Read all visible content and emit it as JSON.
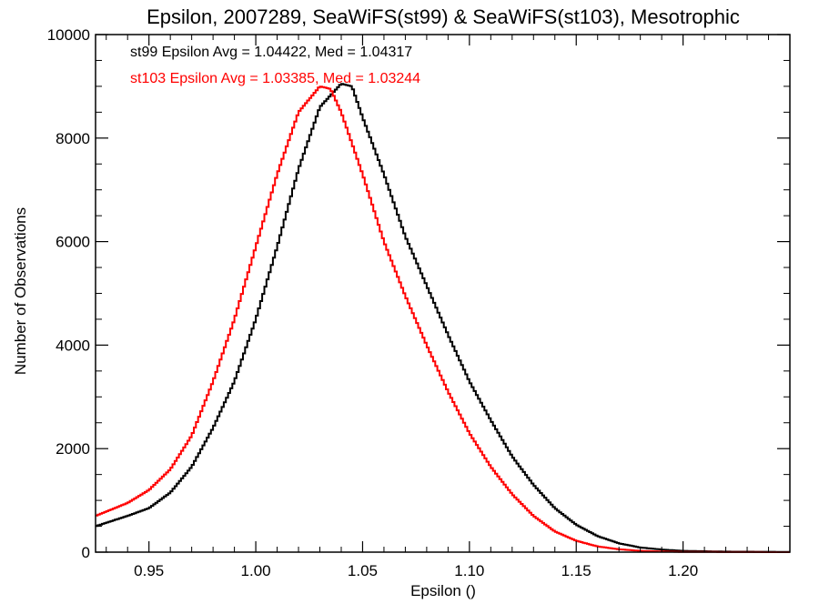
{
  "chart_data": {
    "type": "line",
    "title": "Epsilon, 2007289, SeaWiFS(st99) & SeaWiFS(st103), Mesotrophic",
    "xlabel": "Epsilon ()",
    "ylabel": "Number of Observations",
    "xlim": [
      0.925,
      1.25
    ],
    "ylim": [
      0,
      10000
    ],
    "x_ticks": [
      "0.95",
      "1.00",
      "1.05",
      "1.10",
      "1.15",
      "1.20"
    ],
    "y_ticks": [
      "0",
      "2000",
      "4000",
      "6000",
      "8000",
      "10000"
    ],
    "grid": false,
    "annotations": [
      {
        "text": "st99 Epsilon Avg = 1.04422, Med = 1.04317",
        "color": "#000000"
      },
      {
        "text": "st103 Epsilon Avg = 1.03385, Med = 1.03244",
        "color": "#ff0000"
      }
    ],
    "series": [
      {
        "color": "#000000",
        "points": [
          [
            0.925,
            500
          ],
          [
            0.94,
            700
          ],
          [
            0.95,
            850
          ],
          [
            0.96,
            1150
          ],
          [
            0.97,
            1650
          ],
          [
            0.98,
            2400
          ],
          [
            0.99,
            3300
          ],
          [
            1.0,
            4500
          ],
          [
            1.01,
            5900
          ],
          [
            1.02,
            7400
          ],
          [
            1.03,
            8600
          ],
          [
            1.04,
            9050
          ],
          [
            1.045,
            9000
          ],
          [
            1.05,
            8400
          ],
          [
            1.06,
            7300
          ],
          [
            1.07,
            6100
          ],
          [
            1.08,
            5150
          ],
          [
            1.09,
            4200
          ],
          [
            1.1,
            3300
          ],
          [
            1.11,
            2550
          ],
          [
            1.12,
            1850
          ],
          [
            1.13,
            1300
          ],
          [
            1.14,
            850
          ],
          [
            1.15,
            530
          ],
          [
            1.16,
            310
          ],
          [
            1.17,
            170
          ],
          [
            1.18,
            90
          ],
          [
            1.19,
            50
          ],
          [
            1.2,
            25
          ],
          [
            1.22,
            10
          ],
          [
            1.25,
            5
          ]
        ]
      },
      {
        "color": "#ff0000",
        "points": [
          [
            0.925,
            700
          ],
          [
            0.94,
            950
          ],
          [
            0.95,
            1200
          ],
          [
            0.96,
            1600
          ],
          [
            0.97,
            2250
          ],
          [
            0.98,
            3300
          ],
          [
            0.99,
            4500
          ],
          [
            1.0,
            5900
          ],
          [
            1.01,
            7300
          ],
          [
            1.02,
            8500
          ],
          [
            1.03,
            9000
          ],
          [
            1.035,
            8950
          ],
          [
            1.04,
            8500
          ],
          [
            1.05,
            7300
          ],
          [
            1.06,
            6000
          ],
          [
            1.07,
            4950
          ],
          [
            1.08,
            4000
          ],
          [
            1.09,
            3100
          ],
          [
            1.1,
            2300
          ],
          [
            1.11,
            1650
          ],
          [
            1.12,
            1120
          ],
          [
            1.13,
            700
          ],
          [
            1.14,
            400
          ],
          [
            1.15,
            220
          ],
          [
            1.16,
            110
          ],
          [
            1.17,
            55
          ],
          [
            1.18,
            25
          ],
          [
            1.19,
            12
          ],
          [
            1.2,
            5
          ],
          [
            1.22,
            2
          ],
          [
            1.25,
            0
          ]
        ]
      }
    ]
  }
}
